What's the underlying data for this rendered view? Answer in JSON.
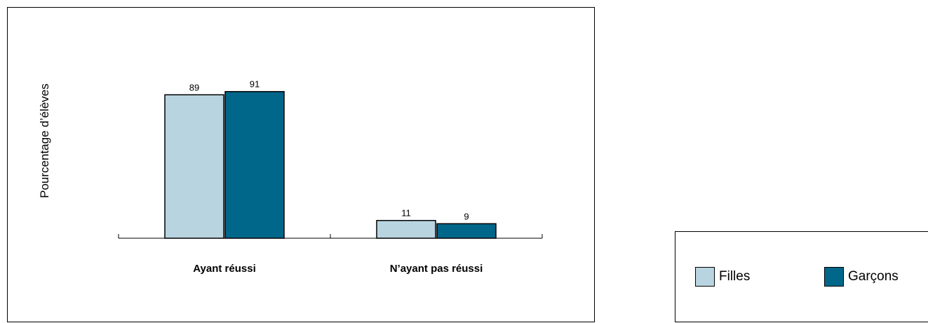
{
  "chart_data": {
    "type": "bar",
    "ylabel": "Pourcentage d’élèves",
    "categories": [
      "Ayant réussi",
      "N’ayant pas réussi"
    ],
    "series": [
      {
        "name": "Filles",
        "values": [
          89,
          11
        ],
        "color": "#b8d4e0"
      },
      {
        "name": "Garçons",
        "values": [
          91,
          9
        ],
        "color": "#00668a"
      }
    ],
    "ylim": [
      0,
      100
    ],
    "grid": false,
    "legend": "bottom-right"
  }
}
